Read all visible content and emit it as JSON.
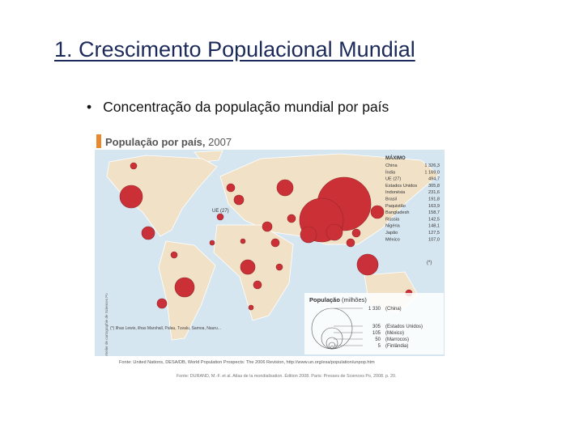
{
  "header": {
    "title": "1. Crescimento Populacional Mundial"
  },
  "bullets": [
    "Concentração da população mundial por país"
  ],
  "map": {
    "title": "População por país,",
    "year": "2007",
    "table": {
      "heading": "MÁXIMO",
      "rows": [
        [
          "China",
          "1 326,3"
        ],
        [
          "Índia",
          "1 169,0"
        ],
        [
          "UE (27)",
          "494,7"
        ],
        [
          "Estados Unidos",
          "305,8"
        ],
        [
          "Indonésia",
          "231,6"
        ],
        [
          "Brasil",
          "191,8"
        ],
        [
          "Paquistão",
          "163,9"
        ],
        [
          "Bangladesh",
          "158,7"
        ],
        [
          "Rússia",
          "142,5"
        ],
        [
          "Nigéria",
          "148,1"
        ],
        [
          "Japão",
          "127,5"
        ],
        [
          "México",
          "107,0"
        ]
      ]
    },
    "labels": {
      "eu": "UE (27)",
      "india": "(*)"
    },
    "legend": {
      "title": "População",
      "unit": "(milhões)",
      "items": [
        [
          "1 330",
          "(China)"
        ],
        [
          "305",
          "(Estados Unidos)"
        ],
        [
          "105",
          "(México)"
        ],
        [
          "50",
          "(Marrocos)"
        ],
        [
          "5",
          "(Finlândia)"
        ]
      ]
    },
    "note": "(*) Ilhas Lewis, ilhas Marshall, Palau, Tuvalu, Samoa, Nauru...",
    "credit": "Atelier de cartographie de Sciences Po",
    "source": "Fonte: United Nations, DESA/DB, World Population Prospects: The 2006 Revision, http://www.un.org/esa/population/unpop.htm",
    "source2": "Fonte: DURAND, M.-F. et al. Atlas de la mondialisation. Édition 2008. Paris: Presses de Sciences Po, 2008. p. 20."
  }
}
